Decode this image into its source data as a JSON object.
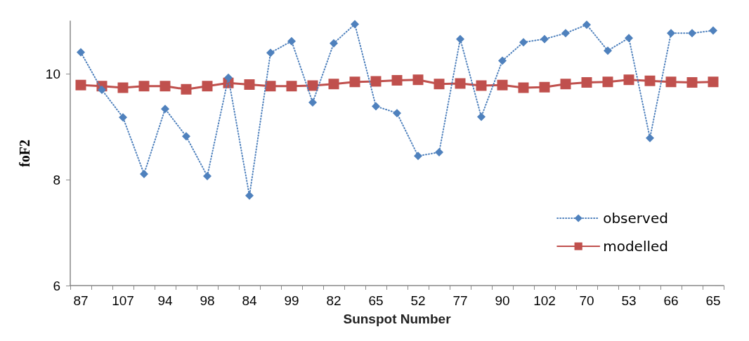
{
  "chart_data": {
    "type": "line",
    "xlabel": "Sunspot Number",
    "ylabel": "foF2",
    "categories": [
      "87",
      null,
      "107",
      null,
      "94",
      null,
      "98",
      null,
      "84",
      null,
      "99",
      null,
      "82",
      null,
      "65",
      null,
      "52",
      null,
      "77",
      null,
      "90",
      null,
      "102",
      null,
      "70",
      null,
      "53",
      null,
      "66",
      null,
      "65"
    ],
    "ylim": [
      6,
      11
    ],
    "yticks": [
      6,
      8,
      10
    ],
    "grid": false,
    "legend": "bottom right",
    "series": [
      {
        "name": "observed",
        "color": "#4f81bd",
        "marker": "diamond",
        "line_style": "dotted",
        "values": [
          10.41,
          9.7,
          9.18,
          8.11,
          9.34,
          8.82,
          8.07,
          9.93,
          7.7,
          10.4,
          10.62,
          9.46,
          10.58,
          10.94,
          9.39,
          9.26,
          8.45,
          8.52,
          10.66,
          9.19,
          10.25,
          10.6,
          10.66,
          10.77,
          10.93,
          10.44,
          10.68,
          8.79,
          10.77,
          10.77,
          10.82
        ]
      },
      {
        "name": "modelled",
        "color": "#c0504d",
        "marker": "square",
        "line_style": "solid",
        "values": [
          9.79,
          9.77,
          9.74,
          9.77,
          9.77,
          9.71,
          9.77,
          9.83,
          9.8,
          9.77,
          9.77,
          9.78,
          9.81,
          9.85,
          9.86,
          9.88,
          9.89,
          9.81,
          9.82,
          9.78,
          9.79,
          9.74,
          9.75,
          9.81,
          9.84,
          9.85,
          9.89,
          9.87,
          9.85,
          9.84,
          9.85
        ]
      }
    ]
  }
}
